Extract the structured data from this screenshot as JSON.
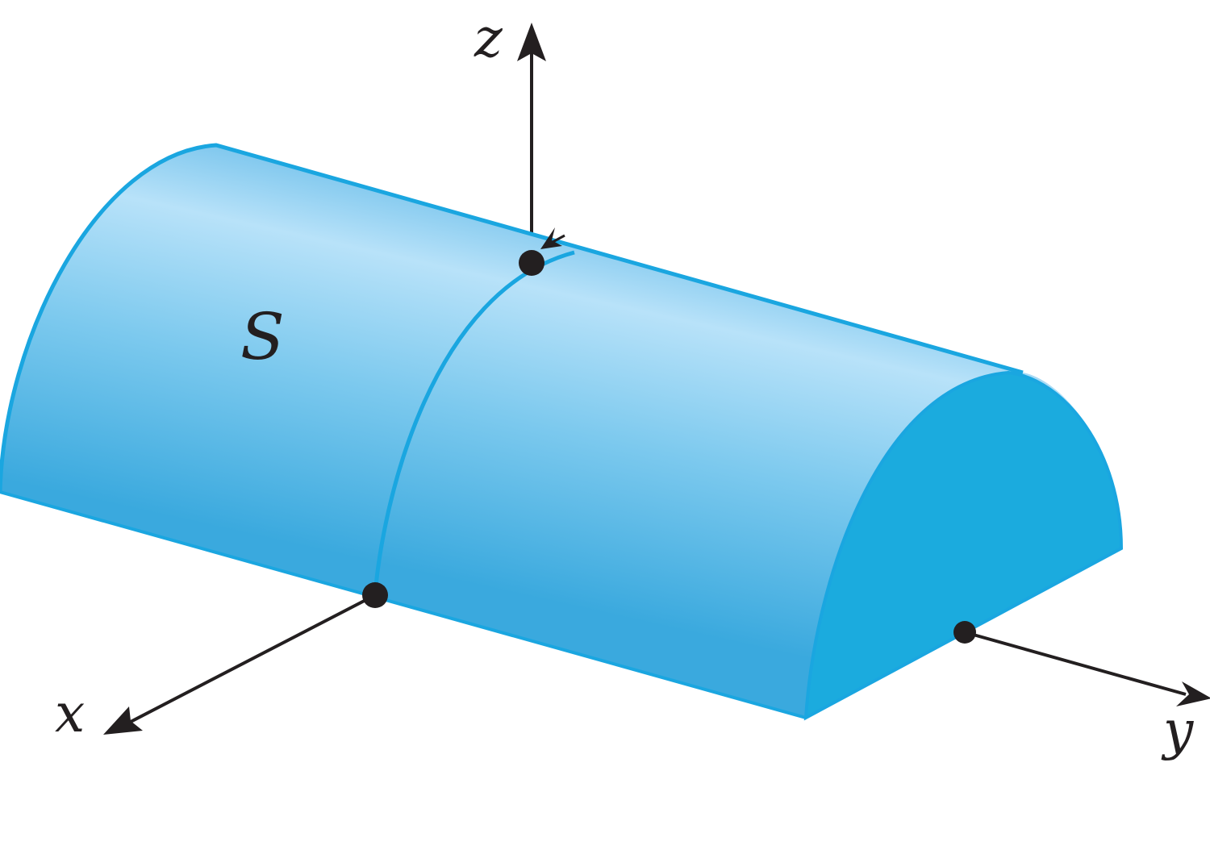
{
  "figure": {
    "surface_label": "S",
    "axes": {
      "x_label": "x",
      "y_label": "y",
      "z_label": "z"
    },
    "colors": {
      "surface_edge": "#1aa6e0",
      "surface_light": "#b8e2f9",
      "surface_mid": "#6cc4ec",
      "end_cap": "#1babde",
      "axis": "#231f20",
      "point": "#231f20"
    }
  }
}
